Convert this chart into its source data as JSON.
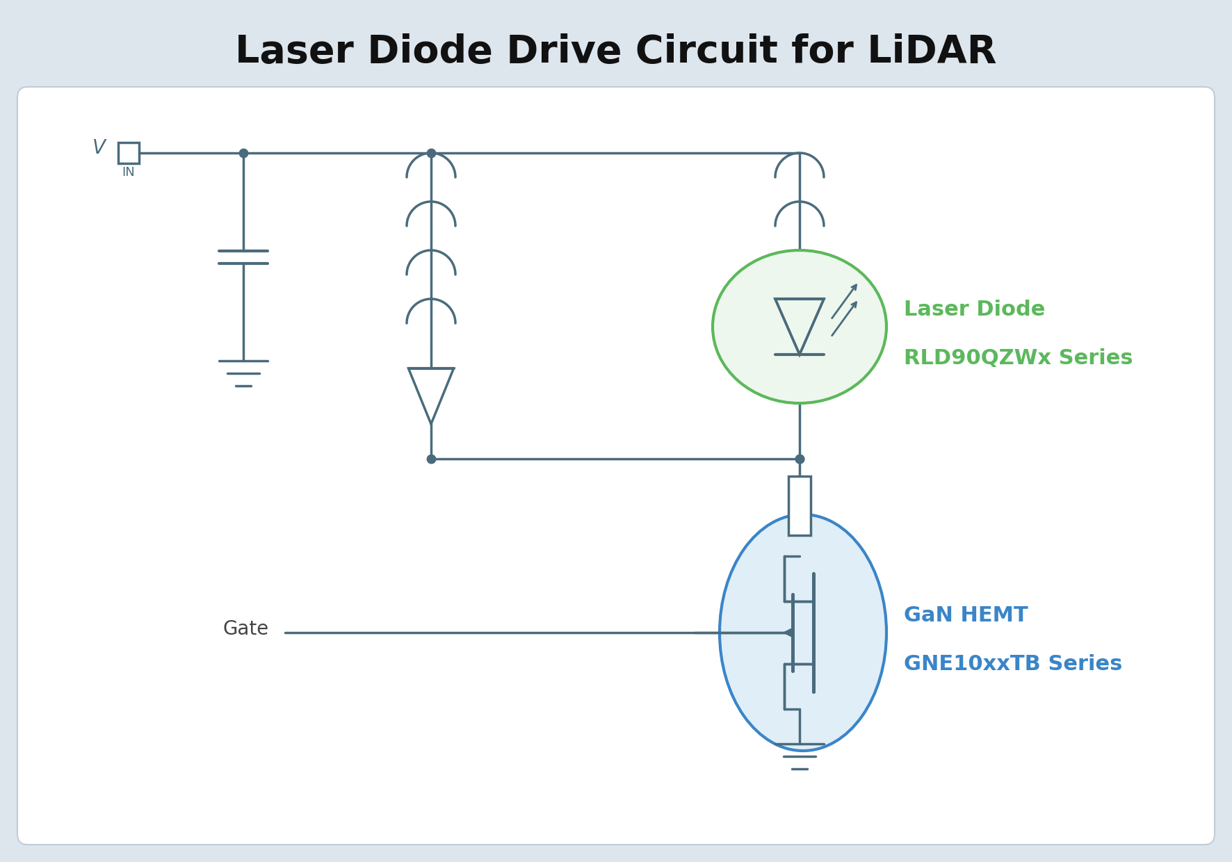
{
  "title": "Laser Diode Drive Circuit for LiDAR",
  "title_fontsize": 40,
  "background_color": "#dde5ed",
  "panel_color": "#ffffff",
  "circuit_color": "#4a6b7c",
  "green_color": "#5cb85c",
  "green_fill": "#edf7ed",
  "blue_color": "#3a85c8",
  "blue_fill": "#e0eef8",
  "label_laser": [
    "Laser Diode",
    "RLD90QZWx Series"
  ],
  "label_gan": [
    "GaN HEMT",
    "GNE10xxTB Series"
  ],
  "label_gate": "Gate",
  "lw": 2.5,
  "dot_size": 9,
  "xlim": [
    0,
    17.72
  ],
  "ylim": [
    0,
    12.4
  ]
}
